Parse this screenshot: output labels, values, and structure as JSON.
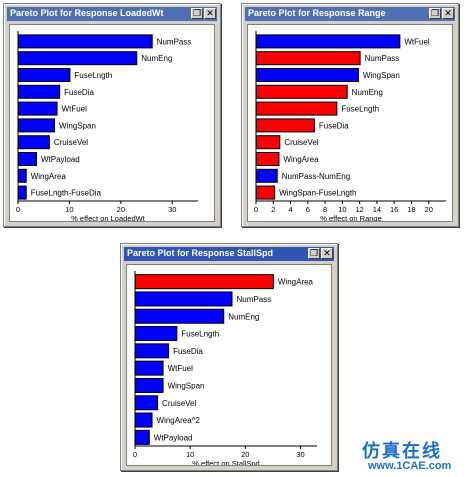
{
  "windows": [
    {
      "title": "Pareto Plot for Response LoadedWt",
      "x_axis_title": "% effect on LoadedWt",
      "close_glyph": "✕",
      "restore_glyph": "❐",
      "chart": {
        "type": "bar",
        "orientation": "horizontal",
        "categories": [
          "NumPass",
          "NumEng",
          "FuseLngth",
          "FuseDia",
          "WtFuel",
          "WingSpan",
          "CruiseVel",
          "WtPayload",
          "WingArea",
          "FuseLngth-FuseDia"
        ],
        "values": [
          26,
          23,
          10,
          8,
          7.5,
          7,
          6,
          3.5,
          1.5,
          1.5
        ],
        "positive": [
          true,
          true,
          true,
          true,
          true,
          true,
          true,
          true,
          true,
          true
        ],
        "xlim": [
          0,
          35
        ],
        "xticks": [
          0,
          10,
          20,
          30
        ]
      }
    },
    {
      "title": "Pareto Plot for Response Range",
      "x_axis_title": "% effect on Range",
      "close_glyph": "✕",
      "restore_glyph": "❐",
      "chart": {
        "type": "bar",
        "orientation": "horizontal",
        "categories": [
          "WtFuel",
          "NumPass",
          "WingSpan",
          "NumEng",
          "FuseLngth",
          "FuseDia",
          "CruiseVel",
          "WingArea",
          "NumPass-NumEng",
          "WingSpan-FuseLngth"
        ],
        "values": [
          16.6,
          12,
          11.8,
          10.5,
          9.3,
          6.7,
          2.7,
          2.6,
          2.4,
          2.1
        ],
        "positive": [
          true,
          false,
          true,
          false,
          false,
          false,
          false,
          false,
          true,
          false
        ],
        "xlim": [
          0,
          22
        ],
        "xticks": [
          0,
          2,
          4,
          6,
          8,
          10,
          12,
          14,
          16,
          18,
          20
        ]
      }
    },
    {
      "title": "Pareto Plot for Response StallSpd",
      "x_axis_title": "% effect on StallSpd",
      "close_glyph": "✕",
      "restore_glyph": "❐",
      "chart": {
        "type": "bar",
        "orientation": "horizontal",
        "categories": [
          "WingArea",
          "NumPass",
          "NumEng",
          "FuseLngth",
          "FuseDia",
          "WtFuel",
          "WingSpan",
          "CruiseVel",
          "WingArea^2",
          "WtPayload"
        ],
        "values": [
          25,
          17.5,
          16,
          7.5,
          6,
          5,
          5,
          4,
          3,
          2.5
        ],
        "positive": [
          false,
          true,
          true,
          true,
          true,
          true,
          true,
          true,
          true,
          true
        ],
        "xlim": [
          0,
          33
        ],
        "xticks": [
          0,
          10,
          20,
          30
        ]
      }
    }
  ],
  "colors": {
    "positive_bar": "#0000ff",
    "negative_bar": "#ff0000",
    "title_bar": "#2f56b5",
    "window_face": "#d4d0c8"
  },
  "chart_data": [
    {
      "type": "bar",
      "title": "Pareto Plot for Response LoadedWt",
      "xlabel": "% effect on LoadedWt",
      "categories": [
        "NumPass",
        "NumEng",
        "FuseLngth",
        "FuseDia",
        "WtFuel",
        "WingSpan",
        "CruiseVel",
        "WtPayload",
        "WingArea",
        "FuseLngth-FuseDia"
      ],
      "values": [
        26,
        23,
        10,
        8,
        7.5,
        7,
        6,
        3.5,
        1.5,
        1.5
      ],
      "xlim": [
        0,
        35
      ]
    },
    {
      "type": "bar",
      "title": "Pareto Plot for Response Range",
      "xlabel": "% effect on Range",
      "categories": [
        "WtFuel",
        "NumPass",
        "WingSpan",
        "NumEng",
        "FuseLngth",
        "FuseDia",
        "CruiseVel",
        "WingArea",
        "NumPass-NumEng",
        "WingSpan-FuseLngth"
      ],
      "values": [
        16.6,
        12,
        11.8,
        10.5,
        9.3,
        6.7,
        2.7,
        2.6,
        2.4,
        2.1
      ],
      "xlim": [
        0,
        22
      ]
    },
    {
      "type": "bar",
      "title": "Pareto Plot for Response StallSpd",
      "xlabel": "% effect on StallSpd",
      "categories": [
        "WingArea",
        "NumPass",
        "NumEng",
        "FuseLngth",
        "FuseDia",
        "WtFuel",
        "WingSpan",
        "CruiseVel",
        "WingArea^2",
        "WtPayload"
      ],
      "values": [
        25,
        17.5,
        16,
        7.5,
        6,
        5,
        5,
        4,
        3,
        2.5
      ],
      "xlim": [
        0,
        33
      ]
    }
  ],
  "watermark": {
    "chinese": "仿真在线",
    "url": "www.1CAE.com"
  }
}
